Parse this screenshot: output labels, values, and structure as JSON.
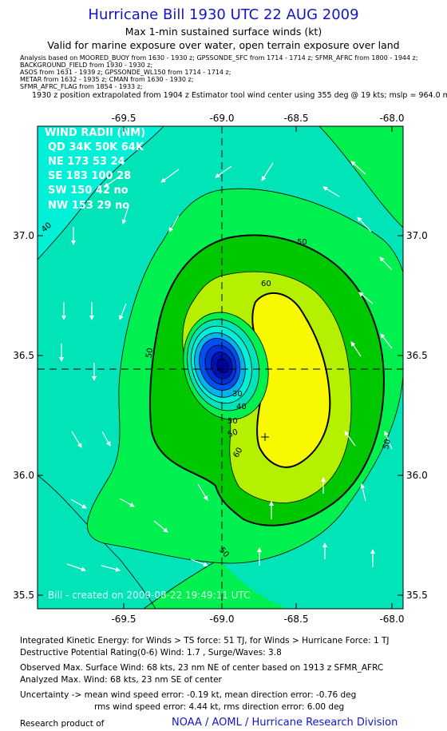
{
  "header": {
    "title": "Hurricane Bill 1930 UTC 22 AUG 2009",
    "subtitle": "Max 1-min sustained surface winds (kt)",
    "valid_line": "Valid for marine exposure over water, open terrain exposure over land"
  },
  "sources": [
    "Analysis based on   MOORED_BUOY from 1630 - 1930 z;  GPSSONDE_SFC from 1714 - 1714 z;  SFMR_AFRC from 1800 - 1944 z;",
    "BACKGROUND_FIELD from 1930 - 1930 z;",
    "ASOS from 1631 - 1939 z;  GPSSONDE_WL150 from 1714 - 1714 z;",
    "METAR from 1632 - 1935 z;  CMAN from 1630 - 1930 z;",
    "SFMR_AFRC_FLAG from 1854 - 1933 z;"
  ],
  "position_note": "1930 z position extrapolated from 1904 z Estimator tool wind center using 355 deg @ 19 kts; mslp = 964.0 mb",
  "map": {
    "lon_ticks": [
      "-69.5",
      "-69.0",
      "-68.5",
      "-68.0"
    ],
    "lat_ticks": [
      "37.0",
      "36.5",
      "36.0",
      "35.5"
    ],
    "center": {
      "lon": -69.0,
      "lat": 36.45
    },
    "contour_labels": [
      "40",
      "50",
      "60",
      "50",
      "50",
      "40",
      "30",
      "50",
      "60",
      "50",
      "50"
    ],
    "colors": {
      "cyan": "#00f0d8",
      "aqua": "#00e4b8",
      "green": "#00f050",
      "dark_green": "#00c800",
      "yellow_green": "#b4f000",
      "yellow": "#f8f800",
      "blue": "#0050f0",
      "dark_blue": "#0000a0"
    },
    "wind_radii": {
      "title": "WIND RADII (NM)",
      "header": "QD 34K 50K 64K",
      "rows": [
        "NE 173  53  24",
        "SE 183 100  28",
        "SW 150  42  no",
        "NW 153  29  no"
      ]
    },
    "watermark": "Bill - created on 2009-08-22 19:49:11 UTC"
  },
  "footer": {
    "ike": "Integrated Kinetic Energy:  for Winds > TS force: 51 TJ,  for Winds > Hurricane Force: 1 TJ",
    "dpr": "Destructive Potential Rating(0-6)   Wind: 1.7 , Surge/Waves: 3.8",
    "observed": "Observed Max. Surface Wind: 68 kts, 23 nm NE of center based on 1913 z SFMR_AFRC",
    "analyzed": "Analyzed Max. Wind: 68 kts, 23 nm SE of center",
    "uncertainty": "Uncertainty -> mean wind speed error:  -0.19 kt,   mean direction error:  -0.76 deg",
    "rms": "rms wind speed error: 4.44 kt,   rms direction error: 6.00 deg",
    "product_prefix": "Research product of",
    "organization": "NOAA / AOML / Hurricane Research Division"
  }
}
